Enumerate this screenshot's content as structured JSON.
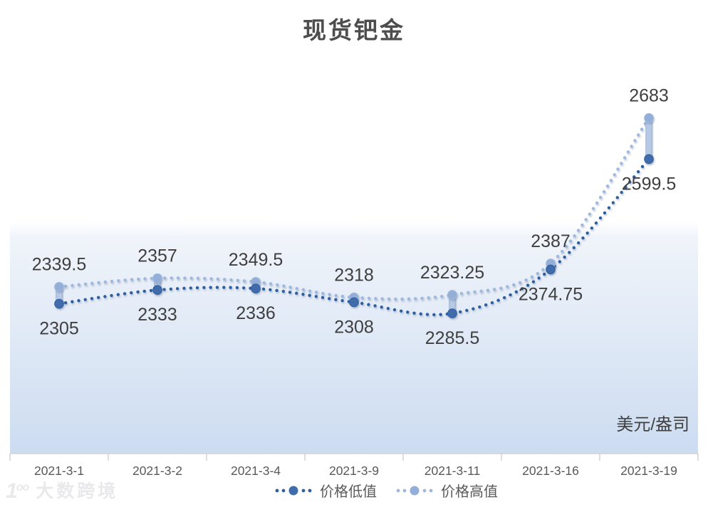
{
  "chart_data": {
    "type": "line",
    "title": "现货钯金",
    "unit_label": "美元/盎司",
    "categories": [
      "2021-3-1",
      "2021-3-2",
      "2021-3-4",
      "2021-3-9",
      "2021-3-11",
      "2021-3-16",
      "2021-3-19"
    ],
    "series": [
      {
        "name": "价格低值",
        "values": [
          2305,
          2333,
          2336,
          2308,
          2285.5,
          2374.75,
          2599.5
        ]
      },
      {
        "name": "价格高值",
        "values": [
          2339.5,
          2357,
          2349.5,
          2318,
          2323.25,
          2387,
          2683
        ]
      }
    ],
    "ylim": [
      2000,
      2700
    ],
    "grid": false,
    "legend_position": "bottom",
    "high_low_connector_bars": true,
    "line_style": "dotted-smooth",
    "data_labels": "all-points"
  },
  "colors": {
    "low_line": "#2e5f9f",
    "low_marker": "#3f6cab",
    "high_line": "#9fb9de",
    "high_marker": "#93afd7",
    "capsule_fill": "#b6c9e5",
    "capsule_stroke": "#8fa9cf",
    "data_label": "#3f3f3f",
    "axis_text": "#595959",
    "axis_line": "#d4d4d4",
    "tick": "#c8c8c8",
    "plot_top": "#ffffff",
    "plot_mid": "#f0f4fa",
    "plot_bottom": "#ccdcf1"
  },
  "watermark": {
    "logo_one": "1",
    "logo_oo": "oo",
    "text": "大数跨境"
  }
}
